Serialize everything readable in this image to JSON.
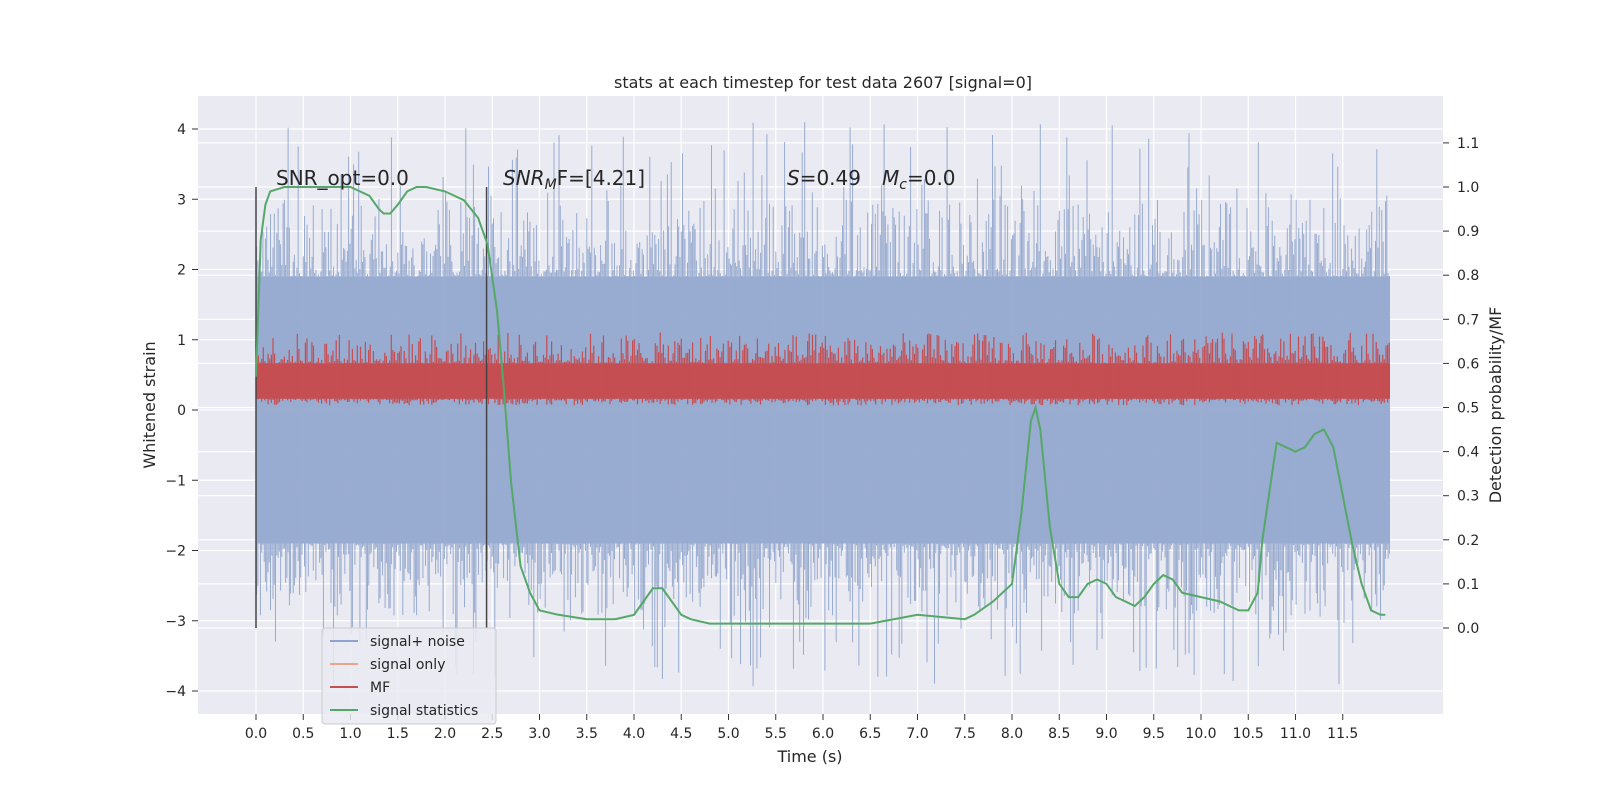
{
  "chart_data": {
    "type": "line",
    "title": "stats at each timestep for test data 2607 [signal=0]",
    "xlabel": "Time (s)",
    "ylabel": "Whitened strain",
    "ylabel_right": "Detection probability/MF",
    "xlim": [
      -0.58,
      12.6
    ],
    "ylim": [
      -4.4,
      4.47
    ],
    "ylim_right": [
      -0.2,
      1.2
    ],
    "x_ticks": [
      "0.0",
      "0.5",
      "1.0",
      "1.5",
      "2.0",
      "2.5",
      "3.0",
      "3.5",
      "4.0",
      "4.5",
      "5.0",
      "5.5",
      "6.0",
      "6.5",
      "7.0",
      "7.5",
      "8.0",
      "8.5",
      "9.0",
      "9.5",
      "10.0",
      "10.5",
      "11.0",
      "11.5"
    ],
    "y_ticks": [
      "4",
      "3",
      "2",
      "1",
      "0",
      "−1",
      "−2",
      "−3",
      "−4"
    ],
    "y_ticks_right": [
      "1.1",
      "1.0",
      "0.9",
      "0.8",
      "0.7",
      "0.6",
      "0.5",
      "0.4",
      "0.3",
      "0.2",
      "0.1",
      "0.0"
    ],
    "annotations": {
      "snr_opt": "SNR_opt=0.0",
      "snr_mf_main": "SNR",
      "snr_mf_sub": "M",
      "snr_mf_rest": "F=[4.21]",
      "s_main": "S",
      "s_rest": "=0.49",
      "mc_main": "M",
      "mc_sub": "c",
      "mc_rest": "=0.0"
    },
    "grid": true,
    "legend_placement": "bottom-left",
    "vlines_x": [
      0.0,
      2.44
    ],
    "series": [
      {
        "name": "signal+ noise",
        "color": "#8fa4cc",
        "description_stats": {
          "x_start": 0.0,
          "x_end": 12.0,
          "band_min": -1.9,
          "band_max": 1.9,
          "peak_max": 4.1,
          "peak_min": -3.95
        }
      },
      {
        "name": "signal only",
        "color": "#e8a58b",
        "values": []
      },
      {
        "name": "MF",
        "color": "#c44e52",
        "description_stats": {
          "x_start": 0.0,
          "x_end": 12.0,
          "y_right_min": 0.5,
          "y_right_max": 0.65
        }
      },
      {
        "name": "signal statistics",
        "color": "#55a868",
        "axis": "right",
        "x": [
          0.0,
          0.05,
          0.1,
          0.15,
          0.3,
          0.5,
          0.8,
          1.0,
          1.1,
          1.2,
          1.3,
          1.35,
          1.42,
          1.5,
          1.6,
          1.7,
          1.8,
          2.0,
          2.2,
          2.35,
          2.45,
          2.55,
          2.62,
          2.7,
          2.8,
          2.9,
          3.0,
          3.2,
          3.5,
          3.8,
          4.0,
          4.1,
          4.2,
          4.3,
          4.4,
          4.5,
          4.6,
          4.8,
          5.0,
          5.5,
          6.0,
          6.5,
          7.0,
          7.5,
          7.6,
          7.8,
          8.0,
          8.1,
          8.2,
          8.25,
          8.3,
          8.4,
          8.5,
          8.6,
          8.7,
          8.8,
          8.9,
          9.0,
          9.1,
          9.2,
          9.3,
          9.4,
          9.5,
          9.6,
          9.7,
          9.8,
          10.0,
          10.2,
          10.4,
          10.5,
          10.6,
          10.65,
          10.8,
          10.9,
          11.0,
          11.1,
          11.2,
          11.3,
          11.4,
          11.5,
          11.6,
          11.7,
          11.8,
          11.9,
          11.95
        ],
        "values": [
          0.57,
          0.88,
          0.96,
          0.99,
          1.0,
          1.0,
          1.0,
          1.0,
          0.99,
          0.98,
          0.95,
          0.94,
          0.94,
          0.96,
          0.99,
          1.0,
          1.0,
          0.99,
          0.97,
          0.93,
          0.87,
          0.72,
          0.55,
          0.33,
          0.14,
          0.08,
          0.04,
          0.03,
          0.02,
          0.02,
          0.03,
          0.06,
          0.09,
          0.09,
          0.06,
          0.03,
          0.02,
          0.01,
          0.01,
          0.01,
          0.01,
          0.01,
          0.03,
          0.02,
          0.03,
          0.06,
          0.1,
          0.26,
          0.47,
          0.5,
          0.45,
          0.23,
          0.1,
          0.07,
          0.07,
          0.1,
          0.11,
          0.1,
          0.07,
          0.06,
          0.05,
          0.07,
          0.1,
          0.12,
          0.11,
          0.08,
          0.07,
          0.06,
          0.04,
          0.04,
          0.08,
          0.2,
          0.42,
          0.41,
          0.4,
          0.41,
          0.44,
          0.45,
          0.41,
          0.3,
          0.19,
          0.1,
          0.04,
          0.03,
          0.03
        ]
      }
    ]
  }
}
